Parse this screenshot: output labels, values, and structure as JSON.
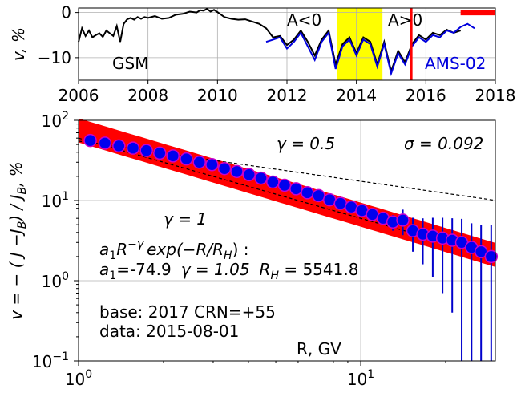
{
  "chart_data": [
    {
      "type": "line",
      "ylabel": "v, %",
      "xlim": [
        2006,
        2018
      ],
      "ylim": [
        -15,
        1
      ],
      "x_ticks": [
        2006,
        2008,
        2010,
        2012,
        2014,
        2016,
        2018
      ],
      "x_tick_labels": [
        "2006",
        "2008",
        "2010",
        "2012",
        "2014",
        "2016",
        "2018"
      ],
      "y_ticks": [
        0,
        -10
      ],
      "y_tick_labels": [
        "0",
        "−10"
      ],
      "grid": true,
      "colors": {
        "gsm": "#000000",
        "ams": "#0000dd",
        "highlight": "#ffff00",
        "marker": "#ff0000"
      },
      "series": [
        {
          "name": "GSM",
          "x": [
            2006.0,
            2006.1,
            2006.2,
            2006.3,
            2006.4,
            2006.5,
            2006.6,
            2006.7,
            2006.8,
            2006.9,
            2007.0,
            2007.1,
            2007.2,
            2007.3,
            2007.4,
            2007.5,
            2007.6,
            2007.7,
            2007.8,
            2007.9,
            2008.0,
            2008.2,
            2008.4,
            2008.6,
            2008.8,
            2009.0,
            2009.2,
            2009.4,
            2009.5,
            2009.6,
            2009.7,
            2009.8,
            2009.9,
            2010.0,
            2010.2,
            2010.4,
            2010.6,
            2010.8,
            2011.0,
            2011.2,
            2011.4,
            2011.6,
            2011.8,
            2012.0,
            2012.2,
            2012.4,
            2012.6,
            2012.8,
            2013.0,
            2013.2,
            2013.4,
            2013.6,
            2013.8,
            2014.0,
            2014.2,
            2014.4,
            2014.6,
            2014.8,
            2015.0,
            2015.2,
            2015.4,
            2015.6,
            2015.8,
            2016.0,
            2016.2,
            2016.4,
            2016.6,
            2016.8,
            2017.0
          ],
          "y": [
            -6.5,
            -3.5,
            -5.2,
            -4.0,
            -5.5,
            -5.0,
            -4.6,
            -5.4,
            -4.0,
            -4.6,
            -5.2,
            -3.0,
            -6.5,
            -2.5,
            -1.5,
            -1.2,
            -1.6,
            -1.0,
            -1.4,
            -1.0,
            -1.2,
            -0.8,
            -1.4,
            -1.2,
            -0.5,
            -0.3,
            0.2,
            0.0,
            0.5,
            0.4,
            0.8,
            0.2,
            0.6,
            0.1,
            -1.0,
            -1.4,
            -1.6,
            -1.5,
            -2.0,
            -2.5,
            -3.5,
            -5.5,
            -5.2,
            -7.2,
            -6.0,
            -4.0,
            -6.5,
            -9.5,
            -6.0,
            -4.0,
            -11.5,
            -7.0,
            -5.5,
            -9.0,
            -5.5,
            -6.5,
            -11.5,
            -6.5,
            -13.0,
            -8.5,
            -11.0,
            -7.0,
            -5.0,
            -6.0,
            -4.5,
            -5.0,
            -3.8,
            -4.5,
            -4.0
          ]
        },
        {
          "name": "AMS-02",
          "x": [
            2011.4,
            2011.6,
            2011.8,
            2012.0,
            2012.2,
            2012.4,
            2012.6,
            2012.8,
            2013.0,
            2013.2,
            2013.4,
            2013.6,
            2013.8,
            2014.0,
            2014.2,
            2014.4,
            2014.6,
            2014.8,
            2015.0,
            2015.2,
            2015.4,
            2015.6,
            2015.8,
            2016.0,
            2016.2,
            2016.4,
            2016.6,
            2016.8,
            2017.0,
            2017.2,
            2017.4
          ],
          "y": [
            -6.5,
            -6.0,
            -5.5,
            -8.0,
            -6.5,
            -4.5,
            -7.5,
            -10.5,
            -6.5,
            -4.5,
            -12.5,
            -7.5,
            -6.0,
            -9.5,
            -6.0,
            -7.0,
            -12.0,
            -7.0,
            -13.5,
            -9.0,
            -11.5,
            -7.5,
            -5.5,
            -6.5,
            -5.0,
            -5.5,
            -4.0,
            -4.5,
            -3.2,
            -2.5,
            -3.5
          ]
        }
      ],
      "annotations": {
        "neg_polarity": "A<0",
        "pos_polarity": "A>0",
        "highlight_span": [
          2013.45,
          2014.75
        ],
        "vline_x": 2015.58,
        "marker_span": [
          2017.0,
          2018.0
        ],
        "marker_y": 0
      }
    },
    {
      "type": "scatter",
      "xlabel": "R, GV",
      "ylabel": "v = − ( J −J",
      "ylabel_sub": "B",
      "ylabel_tail": ") / J",
      "ylabel_sub2": "B",
      "ylabel_end": ", %",
      "xscale": "log",
      "yscale": "log",
      "xlim": [
        1.0,
        30.0
      ],
      "ylim": [
        0.1,
        100.0
      ],
      "x_ticks": [
        1,
        10
      ],
      "x_tick_base": "10",
      "x_tick_exp": [
        "0",
        "1"
      ],
      "y_ticks": [
        0.1,
        1,
        10,
        100
      ],
      "y_tick_base": "10",
      "y_tick_exp": [
        "−1",
        "0",
        "1",
        "2"
      ],
      "grid": true,
      "colors": {
        "fill": "#0000ee",
        "edge": "#cc00cc",
        "band": "#ff0000",
        "errorbar": "#0000cc"
      },
      "points": {
        "x": [
          1.1,
          1.24,
          1.39,
          1.56,
          1.74,
          1.94,
          2.16,
          2.41,
          2.68,
          2.97,
          3.29,
          3.64,
          4.02,
          4.43,
          4.88,
          5.37,
          5.9,
          6.47,
          7.09,
          7.76,
          8.48,
          9.26,
          10.1,
          11.0,
          12.0,
          13.0,
          14.1,
          15.3,
          16.6,
          18.0,
          19.5,
          21.1,
          22.8,
          24.7,
          26.7,
          29.0
        ],
        "y": [
          56,
          52,
          48,
          45,
          42,
          39,
          36,
          33,
          30,
          28,
          25,
          23,
          21,
          19,
          17,
          15.5,
          14,
          12.5,
          11.5,
          10.2,
          9.2,
          8.3,
          7.5,
          6.7,
          6.0,
          5.4,
          5.7,
          4.2,
          3.8,
          3.6,
          3.4,
          3.2,
          3.0,
          2.6,
          2.3,
          2.0
        ],
        "err_low": [
          0,
          0,
          0,
          0,
          0,
          0,
          0,
          0,
          0,
          0,
          0,
          0,
          0,
          0,
          0,
          0,
          0,
          0,
          0,
          0,
          0,
          0.2,
          0.4,
          0.6,
          0.9,
          1.2,
          2.0,
          1.9,
          2.2,
          2.5,
          2.7,
          2.8,
          2.9,
          2.55,
          2.26,
          1.97
        ],
        "err_high": [
          0,
          0,
          0,
          0,
          0,
          0,
          0,
          0,
          0,
          0,
          0,
          0,
          0,
          0,
          0,
          0,
          0,
          0,
          0,
          0,
          0,
          0.2,
          0.4,
          0.6,
          0.9,
          1.2,
          2.0,
          1.9,
          2.2,
          2.5,
          2.7,
          2.8,
          2.9,
          2.6,
          2.7,
          3.0
        ]
      },
      "band_fit": {
        "a": -74.9,
        "gamma": 1.05,
        "rh": 5541.8,
        "half_width": 0.15
      },
      "reference_lines": [
        {
          "label": "γ = 0.5",
          "gamma": 0.5,
          "anchor_r": 1.0,
          "anchor_v": 55.0
        },
        {
          "label": "γ = 1",
          "gamma": 1.0,
          "anchor_r": 1.0,
          "anchor_v": 60.0
        }
      ],
      "annotations": {
        "sigma": "σ = 0.092",
        "formula_a": "a",
        "formula_a_sub": "1",
        "formula_R": "R",
        "formula_sup": "−γ",
        "formula_exp": "exp(−R/R",
        "formula_exp_sub": "H",
        "formula_close": ") :",
        "params_a_sub": "1",
        "params_a_value": "=-74.9",
        "params_gamma": "γ = 1.05",
        "params_R": "R",
        "params_R_sub": "H",
        "params_R_value": " = 5541.8",
        "base": "base: 2017   CRN=+55",
        "date": "data: 2015-08-01"
      }
    }
  ]
}
